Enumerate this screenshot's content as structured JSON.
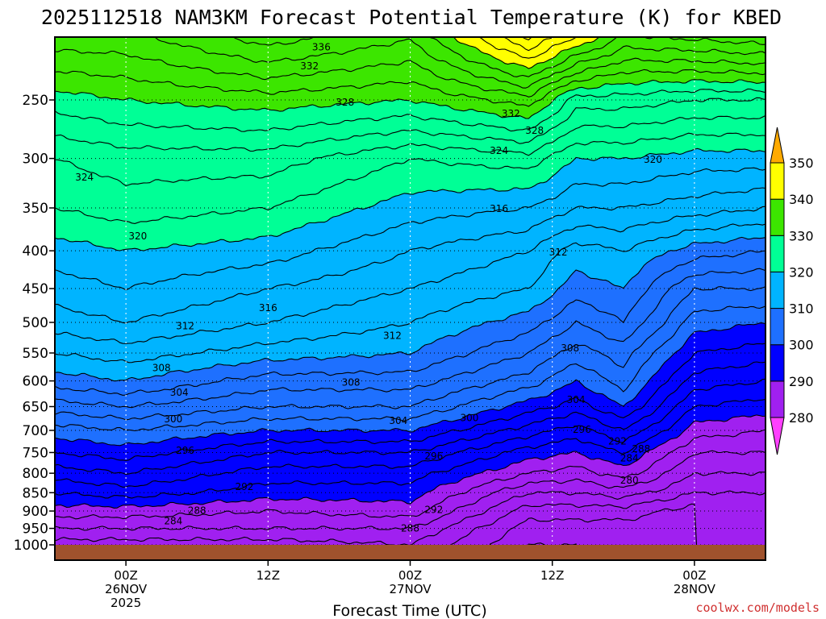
{
  "chart_data": {
    "type": "heatmap",
    "subtype": "time-height cross section (filled contours)",
    "title": "2025112518 NAM3KM Forecast Potential Temperature (K) for KBED",
    "xlabel": "Forecast Time (UTC)",
    "ylabel": "",
    "variable_units": "K",
    "x_ticks": [
      {
        "hour": 6,
        "lines": [
          "00Z",
          "26NOV",
          "2025"
        ]
      },
      {
        "hour": 18,
        "lines": [
          "12Z"
        ]
      },
      {
        "hour": 30,
        "lines": [
          "00Z",
          "27NOV"
        ]
      },
      {
        "hour": 42,
        "lines": [
          "12Z"
        ]
      },
      {
        "hour": 54,
        "lines": [
          "00Z",
          "28NOV"
        ]
      }
    ],
    "x_range_hours": [
      0,
      60
    ],
    "y_ticks_hPa": [
      250,
      300,
      350,
      400,
      450,
      500,
      550,
      600,
      650,
      700,
      750,
      800,
      850,
      900,
      950,
      1000
    ],
    "y_range_hPa": [
      200,
      1015
    ],
    "colorbar": {
      "levels": [
        280,
        290,
        300,
        310,
        320,
        330,
        340,
        350
      ],
      "colors": [
        "#a020f0",
        "#0000ff",
        "#1e70ff",
        "#00b4ff",
        "#00ff96",
        "#3ce600",
        "#ffff00",
        "#ffaa00"
      ],
      "under_color": "#ff40ff",
      "over_color": "#ffaa00"
    },
    "contour_interval": 2,
    "contour_labels": [
      {
        "value": "336",
        "hour": 22.5,
        "p": 212
      },
      {
        "value": "332",
        "hour": 21.5,
        "p": 225
      },
      {
        "value": "328",
        "hour": 24.5,
        "p": 252
      },
      {
        "value": "332",
        "hour": 38.5,
        "p": 261
      },
      {
        "value": "328",
        "hour": 40.5,
        "p": 275
      },
      {
        "value": "324",
        "hour": 37.5,
        "p": 293
      },
      {
        "value": "320",
        "hour": 50.5,
        "p": 301
      },
      {
        "value": "324",
        "hour": 2.5,
        "p": 318
      },
      {
        "value": "316",
        "hour": 37.5,
        "p": 351
      },
      {
        "value": "320",
        "hour": 7,
        "p": 382
      },
      {
        "value": "312",
        "hour": 42.5,
        "p": 402
      },
      {
        "value": "316",
        "hour": 18,
        "p": 478
      },
      {
        "value": "312",
        "hour": 11,
        "p": 506
      },
      {
        "value": "312",
        "hour": 28.5,
        "p": 521
      },
      {
        "value": "308",
        "hour": 43.5,
        "p": 542
      },
      {
        "value": "308",
        "hour": 9,
        "p": 576
      },
      {
        "value": "308",
        "hour": 25,
        "p": 603
      },
      {
        "value": "304",
        "hour": 10.5,
        "p": 622
      },
      {
        "value": "304",
        "hour": 44,
        "p": 636
      },
      {
        "value": "300",
        "hour": 10,
        "p": 676
      },
      {
        "value": "300",
        "hour": 35,
        "p": 673
      },
      {
        "value": "304",
        "hour": 29,
        "p": 679
      },
      {
        "value": "296",
        "hour": 44.5,
        "p": 698
      },
      {
        "value": "292",
        "hour": 47.5,
        "p": 724
      },
      {
        "value": "296",
        "hour": 11,
        "p": 745
      },
      {
        "value": "288",
        "hour": 49.5,
        "p": 742
      },
      {
        "value": "284",
        "hour": 48.5,
        "p": 763
      },
      {
        "value": "296",
        "hour": 32,
        "p": 759
      },
      {
        "value": "280",
        "hour": 48.5,
        "p": 818
      },
      {
        "value": "292",
        "hour": 16,
        "p": 835
      },
      {
        "value": "292",
        "hour": 32,
        "p": 897
      },
      {
        "value": "288",
        "hour": 12,
        "p": 899
      },
      {
        "value": "284",
        "hour": 10,
        "p": 929
      },
      {
        "value": "288",
        "hour": 30,
        "p": 950
      }
    ],
    "theta_profiles": {
      "pressure_levels_hPa": [
        200,
        250,
        300,
        350,
        400,
        450,
        500,
        550,
        600,
        650,
        700,
        750,
        800,
        850,
        900,
        950,
        1000
      ],
      "hours": [
        0,
        6,
        18,
        30,
        40,
        44,
        48,
        54,
        60
      ],
      "values_K": [
        [
          336,
          336,
          340,
          337,
          348,
          344,
          339,
          340,
          341
        ],
        [
          329,
          330,
          331,
          330,
          333,
          327,
          327,
          326,
          326
        ],
        [
          324,
          325,
          325,
          322,
          323,
          320,
          320,
          319,
          319
        ],
        [
          322,
          323,
          322,
          319,
          318,
          316,
          316,
          315,
          314
        ],
        [
          319,
          320,
          319,
          316,
          314,
          311,
          312,
          309,
          308
        ],
        [
          317,
          318,
          316,
          314,
          312,
          309,
          310,
          304,
          304
        ],
        [
          315,
          316,
          314,
          312,
          309,
          306,
          308,
          301,
          300
        ],
        [
          312,
          313,
          311,
          310,
          306,
          303,
          305,
          298,
          297
        ],
        [
          309,
          310,
          307,
          307,
          303,
          300,
          303,
          295,
          294
        ],
        [
          305,
          306,
          304,
          304,
          299,
          297,
          300,
          292,
          291
        ],
        [
          301,
          302,
          300,
          300,
          295,
          293,
          296,
          289,
          288
        ],
        [
          298,
          299,
          296,
          296,
          291,
          290,
          292,
          286,
          286
        ],
        [
          295,
          296,
          293,
          293,
          288,
          287,
          289,
          284,
          284
        ],
        [
          292,
          293,
          291,
          291,
          284,
          284,
          285,
          282,
          282
        ],
        [
          289,
          289,
          288,
          289,
          281,
          281,
          281,
          279,
          280
        ],
        [
          286,
          286,
          286,
          286,
          279,
          279,
          279,
          279,
          280
        ],
        [
          283,
          283,
          283,
          284,
          278,
          278,
          279,
          280,
          281
        ]
      ]
    }
  },
  "credit": "coolwx.com/models"
}
